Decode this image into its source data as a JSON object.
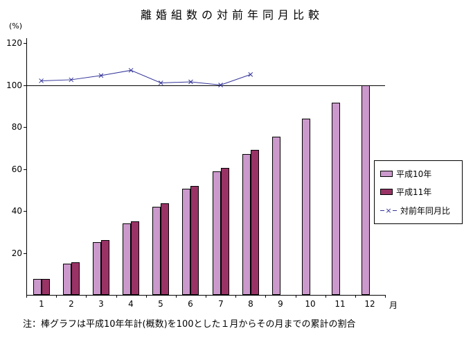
{
  "chart_data": {
    "type": "bar",
    "title": "離婚組数の対前年同月比較",
    "ylabel": "(%)",
    "xlabel": "月",
    "note": "注：棒グラフは平成10年年計(概数)を100とした１月からその月までの累計の割合",
    "categories": [
      1,
      2,
      3,
      4,
      5,
      6,
      7,
      8,
      9,
      10,
      11,
      12
    ],
    "y_ticks": [
      20,
      40,
      60,
      80,
      100,
      120
    ],
    "ylim": [
      0,
      126
    ],
    "grid": false,
    "legend_position": "right",
    "reference_line": 100,
    "series": [
      {
        "name": "平成10年",
        "color": "#CC99CC",
        "values": [
          7.5,
          15,
          25,
          34,
          42,
          50.5,
          59,
          67,
          75.5,
          84,
          91.5,
          100
        ]
      },
      {
        "name": "平成11年",
        "color": "#993366",
        "values": [
          7.5,
          15.5,
          26,
          35,
          43.5,
          52,
          60.5,
          69,
          null,
          null,
          null,
          null
        ]
      }
    ],
    "line_series": {
      "name": "対前年同月比",
      "color": "#333399",
      "marker": "x",
      "values": [
        102,
        102.5,
        104.5,
        107,
        101,
        101.5,
        100,
        105,
        null,
        null,
        null,
        null
      ]
    }
  }
}
